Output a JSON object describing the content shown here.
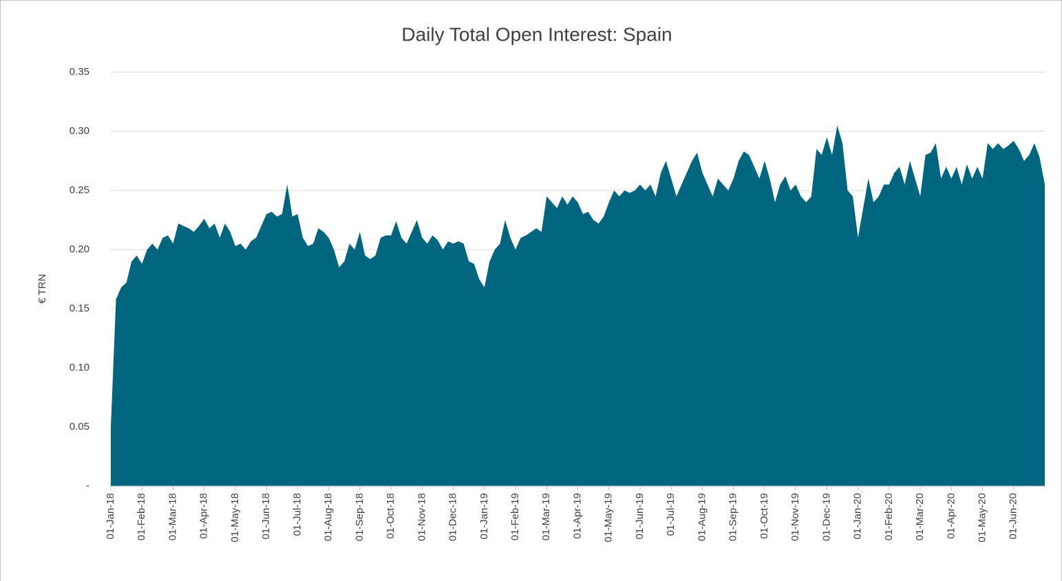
{
  "chart_data": {
    "type": "area",
    "title": "Daily Total Open Interest: Spain",
    "y_label": "€ TRN",
    "color": "#00657f",
    "grid": true,
    "ylim": [
      0,
      0.35
    ],
    "yticks": [
      {
        "value": 0,
        "label": "-"
      },
      0.05,
      {
        "value": 0.1,
        "label": "0.10"
      },
      0.15,
      {
        "value": 0.2,
        "label": "0.20"
      },
      0.25,
      {
        "value": 0.3,
        "label": "0.30"
      },
      0.35
    ],
    "categories": [
      "01-Jan-18",
      null,
      null,
      null,
      null,
      null,
      "01-Feb-18",
      null,
      null,
      null,
      null,
      null,
      "01-Mar-18",
      null,
      null,
      null,
      null,
      null,
      "01-Apr-18",
      null,
      null,
      null,
      null,
      null,
      "01-May-18",
      null,
      null,
      null,
      null,
      null,
      "01-Jun-18",
      null,
      null,
      null,
      null,
      null,
      "01-Jul-18",
      null,
      null,
      null,
      null,
      null,
      "01-Aug-18",
      null,
      null,
      null,
      null,
      null,
      "01-Sep-18",
      null,
      null,
      null,
      null,
      null,
      "01-Oct-18",
      null,
      null,
      null,
      null,
      null,
      "01-Nov-18",
      null,
      null,
      null,
      null,
      null,
      "01-Dec-18",
      null,
      null,
      null,
      null,
      null,
      "01-Jan-19",
      null,
      null,
      null,
      null,
      null,
      "01-Feb-19",
      null,
      null,
      null,
      null,
      null,
      "01-Mar-19",
      null,
      null,
      null,
      null,
      null,
      "01-Apr-19",
      null,
      null,
      null,
      null,
      null,
      "01-May-19",
      null,
      null,
      null,
      null,
      null,
      "01-Jun-19",
      null,
      null,
      null,
      null,
      null,
      "01-Jul-19",
      null,
      null,
      null,
      null,
      null,
      "01-Aug-19",
      null,
      null,
      null,
      null,
      null,
      "01-Sep-19",
      null,
      null,
      null,
      null,
      null,
      "01-Oct-19",
      null,
      null,
      null,
      null,
      null,
      "01-Nov-19",
      null,
      null,
      null,
      null,
      null,
      "01-Dec-19",
      null,
      null,
      null,
      null,
      null,
      "01-Jan-20",
      null,
      null,
      null,
      null,
      null,
      "01-Feb-20",
      null,
      null,
      null,
      null,
      null,
      "01-Mar-20",
      null,
      null,
      null,
      null,
      null,
      "01-Apr-20",
      null,
      null,
      null,
      null,
      null,
      "01-May-20",
      null,
      null,
      null,
      null,
      null,
      "01-Jun-20",
      null,
      null,
      null,
      null,
      null,
      null
    ],
    "values": [
      0.05,
      0.158,
      0.168,
      0.172,
      0.19,
      0.195,
      0.188,
      0.2,
      0.205,
      0.2,
      0.21,
      0.212,
      0.205,
      0.222,
      0.22,
      0.218,
      0.215,
      0.22,
      0.226,
      0.218,
      0.222,
      0.21,
      0.222,
      0.215,
      0.203,
      0.205,
      0.2,
      0.207,
      0.21,
      0.22,
      0.23,
      0.232,
      0.228,
      0.23,
      0.255,
      0.228,
      0.23,
      0.21,
      0.203,
      0.205,
      0.218,
      0.215,
      0.21,
      0.2,
      0.185,
      0.19,
      0.205,
      0.2,
      0.215,
      0.195,
      0.192,
      0.195,
      0.21,
      0.212,
      0.212,
      0.224,
      0.21,
      0.205,
      0.215,
      0.225,
      0.21,
      0.205,
      0.212,
      0.208,
      0.2,
      0.207,
      0.205,
      0.207,
      0.205,
      0.19,
      0.188,
      0.175,
      0.168,
      0.19,
      0.2,
      0.205,
      0.225,
      0.21,
      0.2,
      0.21,
      0.212,
      0.215,
      0.218,
      0.215,
      0.245,
      0.24,
      0.235,
      0.245,
      0.238,
      0.245,
      0.24,
      0.23,
      0.232,
      0.225,
      0.222,
      0.228,
      0.24,
      0.25,
      0.245,
      0.25,
      0.248,
      0.25,
      0.255,
      0.25,
      0.255,
      0.245,
      0.265,
      0.275,
      0.26,
      0.245,
      0.255,
      0.265,
      0.275,
      0.282,
      0.265,
      0.255,
      0.245,
      0.26,
      0.255,
      0.25,
      0.26,
      0.275,
      0.283,
      0.28,
      0.27,
      0.26,
      0.275,
      0.26,
      0.24,
      0.255,
      0.262,
      0.25,
      0.255,
      0.245,
      0.24,
      0.245,
      0.285,
      0.28,
      0.295,
      0.28,
      0.305,
      0.29,
      0.25,
      0.245,
      0.21,
      0.235,
      0.26,
      0.24,
      0.245,
      0.255,
      0.255,
      0.265,
      0.27,
      0.255,
      0.275,
      0.26,
      0.245,
      0.28,
      0.282,
      0.29,
      0.26,
      0.27,
      0.26,
      0.27,
      0.255,
      0.272,
      0.26,
      0.27,
      0.26,
      0.29,
      0.285,
      0.29,
      0.285,
      0.288,
      0.292,
      0.285,
      0.275,
      0.28,
      0.29,
      0.278,
      0.255
    ]
  }
}
